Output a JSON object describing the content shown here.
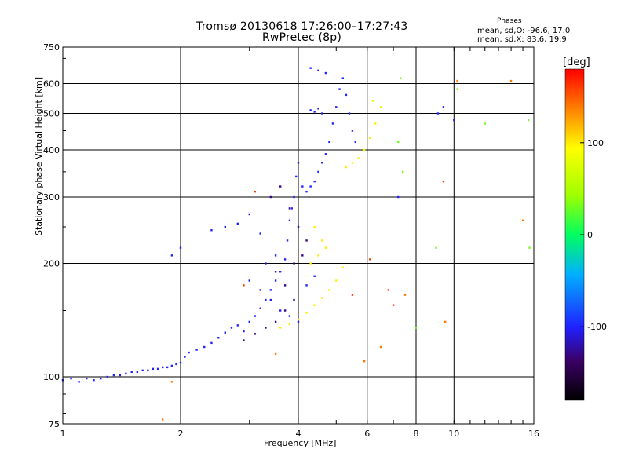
{
  "title": "Tromsø 20130618 17:26:00–17:27:43",
  "subtitle": "RwPretec (8p)",
  "phases": {
    "title": "Phases",
    "o_label": "mean, sd,O: -96.6, 17.0",
    "x_label": "mean, sd,X:  83.6, 19.9"
  },
  "colorbar": {
    "unit": "[deg]",
    "ticks": [
      "100",
      "0",
      "-100"
    ],
    "tick_values": [
      100,
      0,
      -100
    ],
    "range": [
      -180,
      180
    ]
  },
  "chart_data": {
    "type": "scatter",
    "xlabel": "Frequency [MHz]",
    "ylabel": "Stationary phase Virtual Height [km]",
    "x_scale": "log",
    "y_scale": "log",
    "xlim": [
      1,
      16
    ],
    "ylim": [
      75,
      750
    ],
    "x_ticks": [
      1,
      2,
      4,
      6,
      8,
      10,
      16
    ],
    "x_tick_labels": [
      "1",
      "2",
      "4",
      "6",
      "8",
      "10",
      "16"
    ],
    "y_ticks": [
      75,
      100,
      200,
      300,
      400,
      500,
      600,
      750
    ],
    "y_tick_labels": [
      "75",
      "100",
      "200",
      "300",
      "400",
      "500",
      "600",
      "750"
    ],
    "grid": true,
    "series": [
      {
        "color_value": -100,
        "points": [
          [
            1.0,
            98
          ],
          [
            1.05,
            99
          ],
          [
            1.1,
            97
          ],
          [
            1.15,
            99
          ],
          [
            1.2,
            98
          ],
          [
            1.25,
            99
          ],
          [
            1.3,
            100
          ],
          [
            1.35,
            101
          ],
          [
            1.4,
            101
          ],
          [
            1.45,
            102
          ],
          [
            1.5,
            103
          ],
          [
            1.55,
            103
          ],
          [
            1.6,
            104
          ],
          [
            1.65,
            104
          ],
          [
            1.7,
            105
          ],
          [
            1.75,
            105
          ],
          [
            1.8,
            106
          ],
          [
            1.85,
            106
          ],
          [
            1.9,
            107
          ],
          [
            1.95,
            108
          ],
          [
            2.0,
            109
          ],
          [
            2.05,
            113
          ],
          [
            2.1,
            116
          ],
          [
            2.2,
            118
          ],
          [
            2.3,
            120
          ],
          [
            2.4,
            123
          ],
          [
            2.5,
            127
          ],
          [
            2.6,
            131
          ],
          [
            2.7,
            135
          ],
          [
            2.8,
            137
          ],
          [
            2.9,
            132
          ],
          [
            3.0,
            140
          ],
          [
            3.1,
            145
          ],
          [
            3.2,
            152
          ],
          [
            3.3,
            160
          ],
          [
            3.4,
            170
          ],
          [
            3.5,
            180
          ],
          [
            3.6,
            190
          ],
          [
            3.7,
            205
          ],
          [
            3.75,
            230
          ],
          [
            3.8,
            260
          ],
          [
            3.85,
            280
          ],
          [
            3.9,
            300
          ],
          [
            3.95,
            340
          ],
          [
            4.0,
            370
          ],
          [
            4.1,
            320
          ],
          [
            4.2,
            310
          ],
          [
            4.3,
            320
          ],
          [
            4.4,
            330
          ],
          [
            4.5,
            350
          ],
          [
            4.6,
            370
          ],
          [
            4.7,
            390
          ],
          [
            4.8,
            420
          ],
          [
            4.9,
            470
          ],
          [
            5.0,
            520
          ],
          [
            5.1,
            580
          ],
          [
            5.2,
            620
          ],
          [
            5.3,
            560
          ],
          [
            5.4,
            500
          ],
          [
            5.5,
            450
          ],
          [
            5.6,
            420
          ],
          [
            4.3,
            510
          ],
          [
            4.4,
            505
          ],
          [
            4.5,
            515
          ],
          [
            4.6,
            500
          ],
          [
            4.3,
            660
          ],
          [
            4.5,
            650
          ],
          [
            4.7,
            640
          ],
          [
            2.4,
            245
          ],
          [
            2.6,
            250
          ],
          [
            2.8,
            255
          ],
          [
            3.0,
            270
          ],
          [
            3.2,
            240
          ],
          [
            1.9,
            210
          ],
          [
            2.0,
            220
          ],
          [
            3.0,
            180
          ],
          [
            3.2,
            170
          ],
          [
            3.4,
            160
          ],
          [
            3.6,
            150
          ],
          [
            3.8,
            145
          ],
          [
            4.0,
            140
          ],
          [
            4.2,
            175
          ],
          [
            4.4,
            185
          ],
          [
            3.3,
            200
          ],
          [
            3.5,
            210
          ],
          [
            9.1,
            500
          ],
          [
            9.4,
            520
          ],
          [
            10.0,
            480
          ],
          [
            7.2,
            300
          ]
        ]
      },
      {
        "color_value": -130,
        "points": [
          [
            2.9,
            125
          ],
          [
            3.1,
            130
          ],
          [
            3.3,
            135
          ],
          [
            3.5,
            140
          ],
          [
            3.7,
            150
          ],
          [
            3.9,
            160
          ],
          [
            3.4,
            300
          ],
          [
            3.6,
            320
          ],
          [
            3.8,
            280
          ],
          [
            4.0,
            250
          ],
          [
            4.2,
            230
          ],
          [
            3.5,
            190
          ],
          [
            3.7,
            175
          ],
          [
            3.9,
            200
          ],
          [
            4.1,
            210
          ]
        ]
      },
      {
        "color_value": 100,
        "points": [
          [
            3.6,
            135
          ],
          [
            3.8,
            138
          ],
          [
            4.0,
            142
          ],
          [
            4.2,
            148
          ],
          [
            4.4,
            155
          ],
          [
            4.6,
            162
          ],
          [
            4.8,
            170
          ],
          [
            5.0,
            180
          ],
          [
            5.2,
            195
          ],
          [
            4.3,
            200
          ],
          [
            4.5,
            210
          ],
          [
            4.7,
            220
          ],
          [
            4.4,
            250
          ],
          [
            4.6,
            230
          ],
          [
            5.3,
            360
          ],
          [
            5.5,
            370
          ],
          [
            5.7,
            380
          ],
          [
            5.9,
            400
          ],
          [
            6.1,
            430
          ],
          [
            6.3,
            470
          ],
          [
            6.5,
            520
          ],
          [
            6.2,
            540
          ]
        ]
      },
      {
        "color_value": 30,
        "points": [
          [
            7.3,
            620
          ],
          [
            7.2,
            420
          ],
          [
            7.4,
            350
          ],
          [
            9.0,
            220
          ],
          [
            8.0,
            135
          ],
          [
            10.2,
            580
          ],
          [
            12.0,
            470
          ],
          [
            15.5,
            480
          ],
          [
            15.6,
            220
          ]
        ]
      },
      {
        "color_value": 140,
        "points": [
          [
            1.8,
            77
          ],
          [
            1.9,
            97
          ],
          [
            3.5,
            115
          ],
          [
            5.9,
            110
          ],
          [
            6.5,
            120
          ],
          [
            7.5,
            165
          ],
          [
            9.5,
            140
          ],
          [
            10.2,
            610
          ],
          [
            14.0,
            610
          ],
          [
            15.0,
            260
          ]
        ]
      },
      {
        "color_value": 160,
        "points": [
          [
            2.9,
            175
          ],
          [
            6.8,
            170
          ],
          [
            7.0,
            155
          ],
          [
            6.1,
            205
          ],
          [
            5.5,
            165
          ],
          [
            9.4,
            330
          ],
          [
            3.1,
            310
          ]
        ]
      }
    ]
  }
}
